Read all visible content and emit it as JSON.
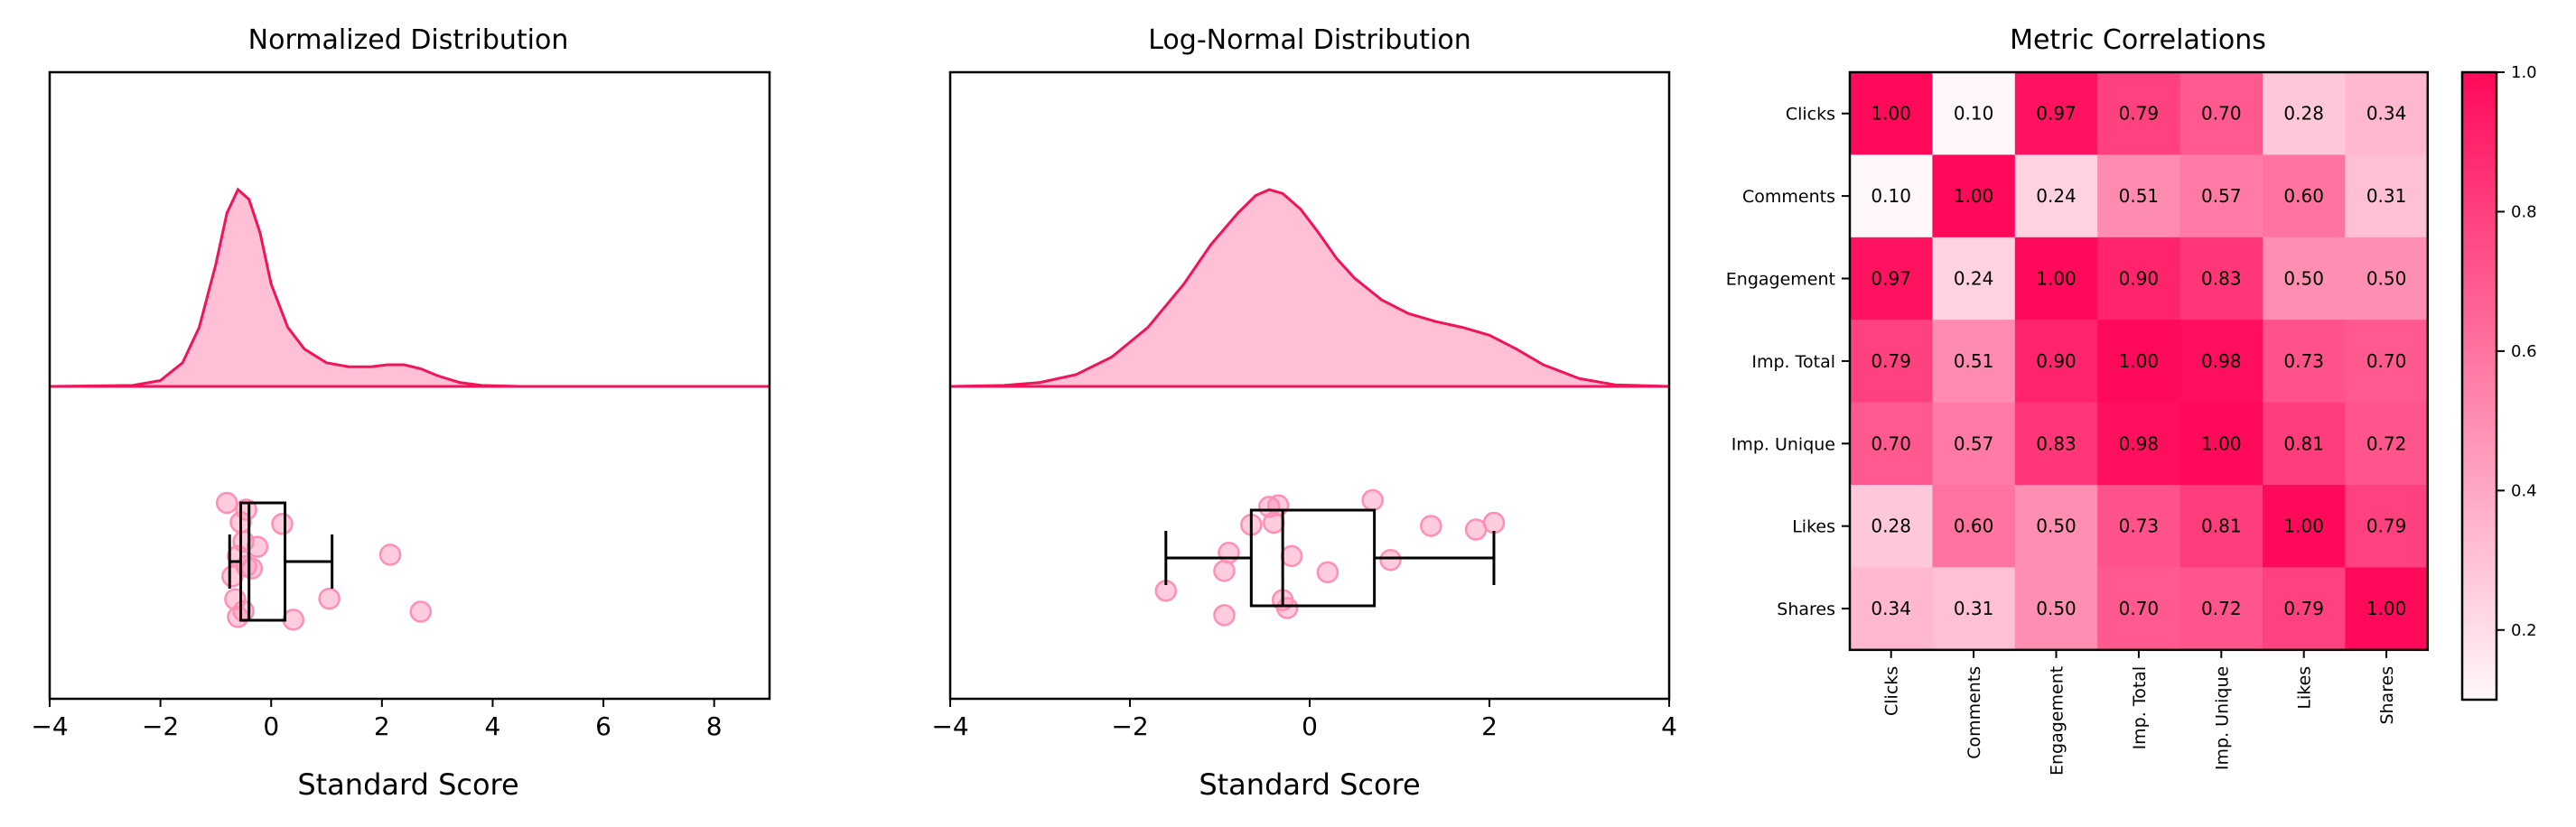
{
  "colors": {
    "accent": "#f0145a",
    "fill": "#ffc0d6",
    "point": "#ff8fb6",
    "heat_low": "#fff7fa",
    "heat_high": "#ff0a5a"
  },
  "chart_data": [
    {
      "type": "area",
      "title": "Normalized Distribution",
      "xlabel": "Standard Score",
      "xlim": [
        -4,
        9
      ],
      "xticks": [
        -4,
        -2,
        0,
        2,
        4,
        6,
        8
      ],
      "xtick_labels": [
        "−4",
        "−2",
        "0",
        "2",
        "4",
        "6",
        "8"
      ],
      "grid": false,
      "density": {
        "x": [
          -4,
          -2.5,
          -2,
          -1.6,
          -1.3,
          -1.0,
          -0.8,
          -0.6,
          -0.4,
          -0.2,
          0,
          0.3,
          0.6,
          1.0,
          1.4,
          1.8,
          2.1,
          2.4,
          2.7,
          3.0,
          3.4,
          3.8,
          4.5,
          9
        ],
        "y": [
          0,
          0.005,
          0.03,
          0.12,
          0.3,
          0.62,
          0.88,
          1.0,
          0.95,
          0.78,
          0.52,
          0.3,
          0.19,
          0.12,
          0.1,
          0.1,
          0.11,
          0.11,
          0.09,
          0.055,
          0.02,
          0.005,
          0,
          0
        ]
      },
      "points": [
        -0.8,
        -0.5,
        -0.45,
        -0.35,
        -0.25,
        -0.6,
        -0.7,
        -0.55,
        -0.5,
        -0.45,
        -0.6,
        -0.65,
        0.2,
        0.4,
        1.05,
        2.15,
        2.7
      ],
      "box": {
        "whisker_low": -0.75,
        "q1": -0.55,
        "median": -0.4,
        "q3": 0.25,
        "whisker_high": 1.1
      }
    },
    {
      "type": "area",
      "title": "Log-Normal Distribution",
      "xlabel": "Standard Score",
      "xlim": [
        -4,
        4
      ],
      "xticks": [
        -4,
        -2,
        0,
        2,
        4
      ],
      "xtick_labels": [
        "−4",
        "−2",
        "0",
        "2",
        "4"
      ],
      "grid": false,
      "density": {
        "x": [
          -4,
          -3.4,
          -3.0,
          -2.6,
          -2.2,
          -1.8,
          -1.4,
          -1.1,
          -0.8,
          -0.6,
          -0.45,
          -0.3,
          -0.1,
          0.1,
          0.3,
          0.5,
          0.8,
          1.1,
          1.4,
          1.7,
          2.0,
          2.3,
          2.6,
          3.0,
          3.4,
          4.0
        ],
        "y": [
          0,
          0.005,
          0.02,
          0.06,
          0.15,
          0.3,
          0.52,
          0.72,
          0.88,
          0.97,
          1.0,
          0.98,
          0.9,
          0.78,
          0.65,
          0.55,
          0.44,
          0.37,
          0.33,
          0.3,
          0.26,
          0.19,
          0.11,
          0.04,
          0.008,
          0
        ]
      },
      "points": [
        -1.6,
        -0.95,
        -0.95,
        -0.9,
        -0.65,
        -0.45,
        -0.4,
        -0.35,
        -0.3,
        -0.25,
        -0.2,
        0.2,
        0.7,
        0.9,
        1.35,
        1.85,
        2.05
      ],
      "box": {
        "whisker_low": -1.6,
        "q1": -0.65,
        "median": -0.3,
        "q3": 0.72,
        "whisker_high": 2.05
      }
    },
    {
      "type": "heatmap",
      "title": "Metric Correlations",
      "rows": [
        "Clicks",
        "Comments",
        "Engagement",
        "Imp. Total",
        "Imp. Unique",
        "Likes",
        "Shares"
      ],
      "columns": [
        "Clicks",
        "Comments",
        "Engagement",
        "Imp. Total",
        "Imp. Unique",
        "Likes",
        "Shares"
      ],
      "values": [
        [
          1.0,
          0.1,
          0.97,
          0.79,
          0.7,
          0.28,
          0.34
        ],
        [
          0.1,
          1.0,
          0.24,
          0.51,
          0.57,
          0.6,
          0.31
        ],
        [
          0.97,
          0.24,
          1.0,
          0.9,
          0.83,
          0.5,
          0.5
        ],
        [
          0.79,
          0.51,
          0.9,
          1.0,
          0.98,
          0.73,
          0.7
        ],
        [
          0.7,
          0.57,
          0.83,
          0.98,
          1.0,
          0.81,
          0.72
        ],
        [
          0.28,
          0.6,
          0.5,
          0.73,
          0.81,
          1.0,
          0.79
        ],
        [
          0.34,
          0.31,
          0.5,
          0.7,
          0.72,
          0.79,
          1.0
        ]
      ],
      "colorbar": {
        "min": 0.1,
        "max": 1.0,
        "ticks": [
          0.2,
          0.4,
          0.6,
          0.8,
          1.0
        ],
        "tick_labels": [
          "0.2",
          "0.4",
          "0.6",
          "0.8",
          "1.0"
        ]
      }
    }
  ]
}
